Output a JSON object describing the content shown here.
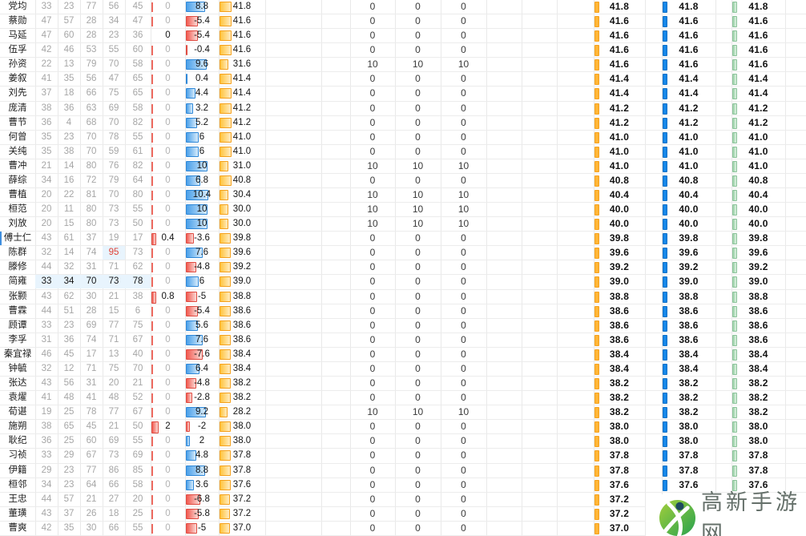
{
  "watermark": {
    "text": "高新手游网"
  },
  "palette": {
    "bar-blue": "#4aa0ea",
    "bar-blue-light": "#d6ebfb",
    "bar-blue-border": "#2f88d8",
    "bar-red": "#f25a50",
    "bar-red-light": "#fadad6",
    "bar-red-border": "#e04b41",
    "bar-orange": "#ffc43c",
    "bar-orange-light": "#ffecc2",
    "bar-orange-border": "#f5a11d",
    "chip-orange": "#ffb637",
    "chip-blue": "#1487e9",
    "chip-blue-border": "#0e6fc4",
    "chip-green": "#9bd2a8",
    "chip-green-light": "#dff2e3",
    "chip-green-border": "#8bc29a",
    "tick-red": "#ed6a60",
    "hl-bg": "#e8f4fd",
    "red-text": "#e04337"
  },
  "table": {
    "rows": [
      {
        "n": "党均",
        "s": [
          33,
          23,
          77,
          56,
          45
        ],
        "g": [
          "0",
          0,
          2
        ],
        "h": "8.8",
        "i": "41.8",
        "m": [
          0,
          0,
          0
        ],
        "r": "41.8"
      },
      {
        "n": "蔡勋",
        "s": [
          47,
          57,
          28,
          34,
          47
        ],
        "g": [
          "0",
          0,
          2
        ],
        "h": "-5.4",
        "i": "41.6",
        "m": [
          0,
          0,
          0
        ],
        "r": "41.6"
      },
      {
        "n": "马延",
        "s": [
          47,
          60,
          28,
          23,
          36
        ],
        "g": [
          "0",
          1,
          0
        ],
        "h": "-5.4",
        "i": "41.6",
        "m": [
          0,
          0,
          0
        ],
        "r": "41.6"
      },
      {
        "n": "伍孚",
        "s": [
          42,
          46,
          53,
          55,
          60
        ],
        "g": [
          "0",
          0,
          2
        ],
        "h": "-0.4",
        "i": "41.6",
        "m": [
          0,
          0,
          0
        ],
        "r": "41.6"
      },
      {
        "n": "孙资",
        "s": [
          22,
          13,
          79,
          70,
          58
        ],
        "g": [
          "0",
          0,
          2
        ],
        "h": "9.6",
        "i": "31.6",
        "m": [
          10,
          10,
          10
        ],
        "r": "41.6"
      },
      {
        "n": "姜叙",
        "s": [
          41,
          35,
          56,
          47,
          65
        ],
        "g": [
          "0",
          0,
          2
        ],
        "h": "0.4",
        "i": "41.4",
        "m": [
          0,
          0,
          0
        ],
        "r": "41.4"
      },
      {
        "n": "刘先",
        "s": [
          37,
          18,
          66,
          75,
          65
        ],
        "g": [
          "0",
          0,
          2
        ],
        "h": "4.4",
        "i": "41.4",
        "m": [
          0,
          0,
          0
        ],
        "r": "41.4"
      },
      {
        "n": "庞清",
        "s": [
          38,
          36,
          63,
          69,
          58
        ],
        "g": [
          "0",
          0,
          2
        ],
        "h": "3.2",
        "i": "41.2",
        "m": [
          0,
          0,
          0
        ],
        "r": "41.2"
      },
      {
        "n": "曹节",
        "s": [
          36,
          4,
          68,
          70,
          82
        ],
        "g": [
          "0",
          0,
          2
        ],
        "h": "5.2",
        "i": "41.2",
        "m": [
          0,
          0,
          0
        ],
        "r": "41.2"
      },
      {
        "n": "何曾",
        "s": [
          35,
          23,
          70,
          78,
          55
        ],
        "g": [
          "0",
          0,
          2
        ],
        "h": "6",
        "i": "41.0",
        "m": [
          0,
          0,
          0
        ],
        "r": "41.0"
      },
      {
        "n": "关纯",
        "s": [
          35,
          38,
          70,
          59,
          61
        ],
        "g": [
          "0",
          0,
          2
        ],
        "h": "6",
        "i": "41.0",
        "m": [
          0,
          0,
          0
        ],
        "r": "41.0"
      },
      {
        "n": "曹冲",
        "s": [
          21,
          14,
          80,
          76,
          82
        ],
        "g": [
          "0",
          0,
          2
        ],
        "h": "10",
        "i": "31.0",
        "m": [
          10,
          10,
          10
        ],
        "r": "41.0"
      },
      {
        "n": "薛综",
        "s": [
          34,
          16,
          72,
          79,
          64
        ],
        "g": [
          "0",
          0,
          2
        ],
        "h": "6.8",
        "i": "40.8",
        "m": [
          0,
          0,
          0
        ],
        "r": "40.8"
      },
      {
        "n": "曹植",
        "s": [
          20,
          22,
          81,
          70,
          80
        ],
        "g": [
          "0",
          0,
          2
        ],
        "h": "10.4",
        "i": "30.4",
        "m": [
          10,
          10,
          10
        ],
        "r": "40.4"
      },
      {
        "n": "桓范",
        "s": [
          20,
          11,
          80,
          73,
          55
        ],
        "g": [
          "0",
          0,
          2
        ],
        "h": "10",
        "i": "30.0",
        "m": [
          10,
          10,
          10
        ],
        "r": "40.0"
      },
      {
        "n": "刘放",
        "s": [
          20,
          15,
          80,
          73,
          50
        ],
        "g": [
          "0",
          0,
          2
        ],
        "h": "10",
        "i": "30.0",
        "m": [
          10,
          10,
          10
        ],
        "r": "40.0"
      },
      {
        "n": "傅士仁",
        "s": [
          43,
          61,
          37,
          19,
          17
        ],
        "g": [
          "0.4",
          1,
          4
        ],
        "h": "-3.6",
        "i": "39.8",
        "m": [
          0,
          0,
          0
        ],
        "r": "39.8",
        "cur": 1
      },
      {
        "n": "陈群",
        "s": [
          32,
          14,
          74,
          95,
          73
        ],
        "red": 3,
        "g": [
          "0",
          0,
          2
        ],
        "h": "7.6",
        "i": "39.6",
        "m": [
          0,
          0,
          0
        ],
        "r": "39.6"
      },
      {
        "n": "滕修",
        "s": [
          44,
          32,
          31,
          71,
          62
        ],
        "g": [
          "0",
          0,
          2
        ],
        "h": "-4.8",
        "i": "39.2",
        "m": [
          0,
          0,
          0
        ],
        "r": "39.2"
      },
      {
        "n": "简雍",
        "s": [
          33,
          34,
          70,
          73,
          78
        ],
        "hl": 1,
        "g": [
          "0",
          0,
          2
        ],
        "h": "6",
        "i": "39.0",
        "m": [
          0,
          0,
          0
        ],
        "r": "39.0"
      },
      {
        "n": "张颢",
        "s": [
          43,
          62,
          30,
          21,
          38
        ],
        "g": [
          "0.8",
          1,
          4
        ],
        "h": "-5",
        "i": "38.8",
        "m": [
          0,
          0,
          0
        ],
        "r": "38.8"
      },
      {
        "n": "曹霖",
        "s": [
          44,
          51,
          28,
          15,
          6
        ],
        "g": [
          "0",
          0,
          2
        ],
        "h": "-5.4",
        "i": "38.6",
        "m": [
          0,
          0,
          0
        ],
        "r": "38.6"
      },
      {
        "n": "顾谭",
        "s": [
          33,
          23,
          69,
          77,
          75
        ],
        "g": [
          "0",
          0,
          2
        ],
        "h": "5.6",
        "i": "38.6",
        "m": [
          0,
          0,
          0
        ],
        "r": "38.6"
      },
      {
        "n": "李孚",
        "s": [
          31,
          36,
          74,
          71,
          67
        ],
        "g": [
          "0",
          0,
          2
        ],
        "h": "7.6",
        "i": "38.6",
        "m": [
          0,
          0,
          0
        ],
        "r": "38.6"
      },
      {
        "n": "秦宜禄",
        "s": [
          46,
          45,
          17,
          13,
          40
        ],
        "g": [
          "0",
          0,
          2
        ],
        "h": "-7.6",
        "i": "38.4",
        "m": [
          0,
          0,
          0
        ],
        "r": "38.4"
      },
      {
        "n": "钟毓",
        "s": [
          32,
          12,
          71,
          75,
          70
        ],
        "g": [
          "0",
          0,
          2
        ],
        "h": "6.4",
        "i": "38.4",
        "m": [
          0,
          0,
          0
        ],
        "r": "38.4"
      },
      {
        "n": "张达",
        "s": [
          43,
          56,
          31,
          20,
          21
        ],
        "g": [
          "0",
          0,
          2
        ],
        "h": "-4.8",
        "i": "38.2",
        "m": [
          0,
          0,
          0
        ],
        "r": "38.2"
      },
      {
        "n": "袁燿",
        "s": [
          41,
          48,
          41,
          48,
          52
        ],
        "g": [
          "0",
          0,
          2
        ],
        "h": "-2.8",
        "i": "38.2",
        "m": [
          0,
          0,
          0
        ],
        "r": "38.2"
      },
      {
        "n": "荀谌",
        "s": [
          19,
          25,
          78,
          77,
          67
        ],
        "g": [
          "0",
          0,
          2
        ],
        "h": "9.2",
        "i": "28.2",
        "m": [
          10,
          10,
          10
        ],
        "r": "38.2"
      },
      {
        "n": "施朔",
        "s": [
          38,
          65,
          45,
          21,
          50
        ],
        "g": [
          "2",
          1,
          7
        ],
        "h": "-2",
        "i": "38.0",
        "m": [
          0,
          0,
          0
        ],
        "r": "38.0"
      },
      {
        "n": "耿纪",
        "s": [
          36,
          25,
          60,
          69,
          55
        ],
        "g": [
          "0",
          0,
          2
        ],
        "h": "2",
        "i": "38.0",
        "m": [
          0,
          0,
          0
        ],
        "r": "38.0"
      },
      {
        "n": "习祯",
        "s": [
          33,
          29,
          67,
          73,
          69
        ],
        "g": [
          "0",
          0,
          2
        ],
        "h": "4.8",
        "i": "37.8",
        "m": [
          0,
          0,
          0
        ],
        "r": "37.8"
      },
      {
        "n": "伊籍",
        "s": [
          29,
          23,
          77,
          86,
          85
        ],
        "g": [
          "0",
          0,
          2
        ],
        "h": "8.8",
        "i": "37.8",
        "m": [
          0,
          0,
          0
        ],
        "r": "37.8"
      },
      {
        "n": "桓邻",
        "s": [
          34,
          23,
          64,
          66,
          58
        ],
        "g": [
          "0",
          0,
          2
        ],
        "h": "3.6",
        "i": "37.6",
        "m": [
          0,
          0,
          0
        ],
        "r": "37.6"
      },
      {
        "n": "王忠",
        "s": [
          44,
          57,
          21,
          27,
          20
        ],
        "g": [
          "0",
          0,
          2
        ],
        "h": "-6.8",
        "i": "37.2",
        "m": [
          0,
          0,
          0
        ],
        "r": "37.2"
      },
      {
        "n": "董璜",
        "s": [
          43,
          37,
          26,
          18,
          25
        ],
        "g": [
          "0",
          0,
          2
        ],
        "h": "-5.8",
        "i": "37.2",
        "m": [
          0,
          0,
          0
        ],
        "r": "37.2"
      },
      {
        "n": "曹爽",
        "s": [
          42,
          35,
          30,
          66,
          55
        ],
        "g": [
          "0",
          0,
          2
        ],
        "h": "-5",
        "i": "37.0",
        "m": [
          0,
          0,
          0
        ],
        "r": "37.0"
      }
    ]
  }
}
